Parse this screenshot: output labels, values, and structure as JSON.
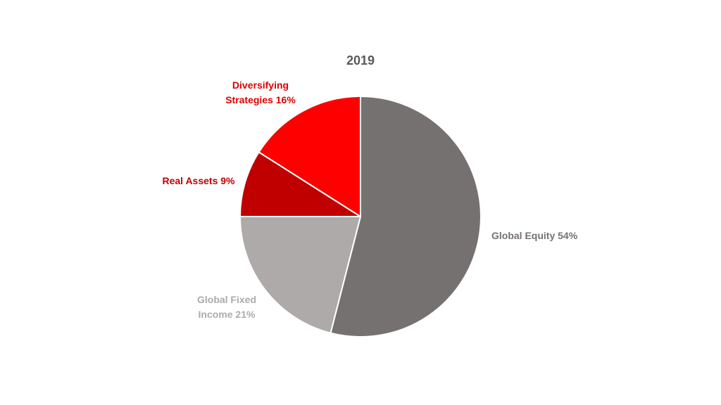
{
  "chart_data": {
    "type": "pie",
    "title": "2019",
    "slices": [
      {
        "label_lines": [
          "Global Equity 54%"
        ],
        "value": 54,
        "color": "#767171",
        "label_color": "#767171"
      },
      {
        "label_lines": [
          "Global Fixed",
          "Income 21%"
        ],
        "value": 21,
        "color": "#AEAAAA",
        "label_color": "#AEAAAA"
      },
      {
        "label_lines": [
          "Real Assets 9%"
        ],
        "value": 9,
        "color": "#C00000",
        "label_color": "#C00000"
      },
      {
        "label_lines": [
          "Diversifying",
          "Strategies 16%"
        ],
        "value": 16,
        "color": "#FF0000",
        "label_color": "#E00000"
      }
    ],
    "start_angle_deg": 0,
    "direction": "clockwise",
    "legend": "none",
    "grid": false
  }
}
